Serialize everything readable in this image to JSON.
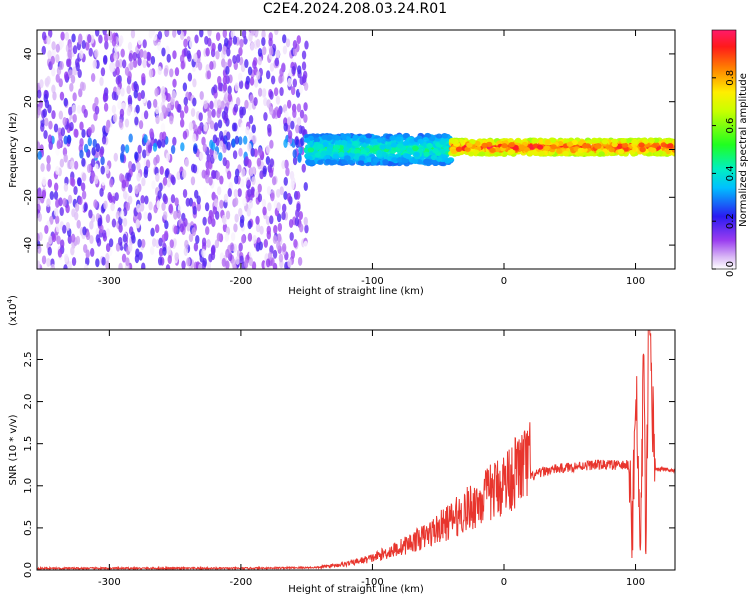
{
  "title": "C2E4.2024.208.03.24.R01",
  "chart_data": [
    {
      "type": "heatmap",
      "xlabel": "Height of straight line (km)",
      "ylabel": "Frequency (Hz)",
      "xlim": [
        -355,
        130
      ],
      "ylim": [
        -50,
        50
      ],
      "xticks": [
        -300,
        -200,
        -100,
        0,
        100
      ],
      "yticks": [
        -40,
        -20,
        0,
        20,
        40
      ],
      "colorbar": {
        "label": "Normalized spectral amplitude",
        "range": [
          0,
          1
        ],
        "ticks": [
          "0.0",
          "0.2",
          "0.4",
          "0.6",
          "0.8"
        ]
      },
      "bands": [
        {
          "x_start": -355,
          "x_end": -150,
          "description_value": "low-amplitude broadband noise",
          "amplitude_range": [
            0.0,
            0.2
          ]
        },
        {
          "x_start": -150,
          "x_end": -40,
          "center_hz": 0,
          "half_width_hz": 6,
          "amplitude_range": [
            0.2,
            0.5
          ]
        },
        {
          "x_start": -40,
          "x_end": 130,
          "center_hz": 1,
          "half_width_hz": 3,
          "amplitude_range": [
            0.5,
            1.0
          ]
        }
      ]
    },
    {
      "type": "line",
      "xlabel": "Height of straight line (km)",
      "ylabel": "SNR (10 * v/v)",
      "y_multiplier": "(x10",
      "y_multiplier_exp": "4",
      "y_multiplier_close": ")",
      "xlim": [
        -355,
        130
      ],
      "ylim": [
        0,
        2.85
      ],
      "xticks": [
        -300,
        -200,
        -100,
        0,
        100
      ],
      "yticks": [
        "0.0",
        "0.5",
        "1.0",
        "1.5",
        "2.0",
        "2.5"
      ],
      "color": "#e8352d",
      "series": [
        {
          "x": [
            -355,
            -300,
            -200,
            -140,
            -120,
            -100,
            -80,
            -60,
            -40,
            -20,
            -10,
            0,
            10,
            20,
            30,
            40,
            50,
            60,
            70,
            80,
            90,
            95,
            98,
            100,
            102,
            104,
            106,
            108,
            110,
            115,
            120,
            130
          ],
          "y": [
            0.02,
            0.02,
            0.02,
            0.03,
            0.06,
            0.12,
            0.22,
            0.34,
            0.5,
            0.68,
            0.78,
            0.88,
            1.0,
            1.1,
            1.17,
            1.2,
            1.22,
            1.24,
            1.25,
            1.25,
            1.24,
            1.25,
            0.5,
            2.3,
            1.0,
            0.3,
            2.6,
            0.1,
            2.8,
            1.2,
            1.2,
            1.18
          ]
        }
      ]
    }
  ]
}
